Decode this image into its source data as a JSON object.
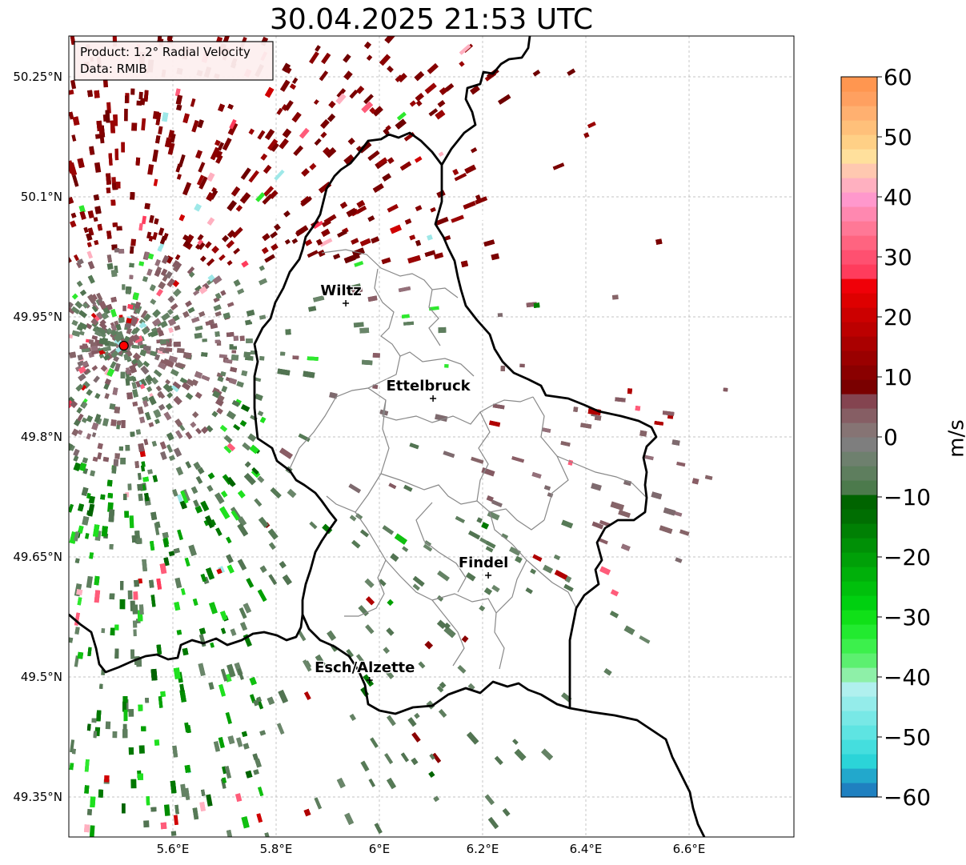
{
  "title": "30.04.2025 21:53 UTC",
  "info_box": {
    "product": "Product: 1.2° Radial Velocity",
    "data": "Data: RMIB"
  },
  "axes": {
    "x_ticks": [
      "5.6°E",
      "5.8°E",
      "6°E",
      "6.2°E",
      "6.4°E",
      "6.6°E"
    ],
    "x_values": [
      5.6,
      5.8,
      6.0,
      6.2,
      6.4,
      6.6
    ],
    "y_ticks": [
      "50.25°N",
      "50.1°N",
      "49.95°N",
      "49.8°N",
      "49.65°N",
      "49.5°N",
      "49.35°N"
    ],
    "y_values": [
      50.25,
      50.1,
      49.95,
      49.8,
      49.65,
      49.5,
      49.35
    ],
    "lon_range": [
      5.4,
      6.8
    ],
    "lat_range": [
      49.3,
      50.3
    ],
    "grid": true
  },
  "cities": [
    {
      "name": "Wiltz",
      "lon": 5.935,
      "lat": 49.967
    },
    {
      "name": "Ettelbruck",
      "lon": 6.104,
      "lat": 49.848
    },
    {
      "name": "Findel",
      "lon": 6.211,
      "lat": 49.627
    },
    {
      "name": "Esch/Alzette",
      "lon": 5.981,
      "lat": 49.496
    }
  ],
  "radar_site": {
    "lon": 5.505,
    "lat": 49.914,
    "color": "#ff0000"
  },
  "colorbar": {
    "label": "m/s",
    "min": -60,
    "max": 60,
    "tick_values": [
      60,
      50,
      40,
      30,
      20,
      10,
      0,
      -10,
      -20,
      -30,
      -40,
      -50,
      -60
    ],
    "tick_labels": [
      "60",
      "50",
      "40",
      "30",
      "20",
      "10",
      "0",
      "−10",
      "−20",
      "−30",
      "−40",
      "−50",
      "−60"
    ],
    "colors_bottom_to_top": [
      "#1f80c0",
      "#22a8cc",
      "#2bd4d8",
      "#44dede",
      "#5ee4e2",
      "#78e8e6",
      "#94ecea",
      "#b0f0ee",
      "#8ef0a8",
      "#5cf070",
      "#3cf04c",
      "#22ea30",
      "#10e018",
      "#00d010",
      "#00c00c",
      "#00b00a",
      "#00a008",
      "#009006",
      "#008004",
      "#006e02",
      "#006400",
      "#4c7a4c",
      "#5e7e5e",
      "#6e806e",
      "#7e7e7e",
      "#867474",
      "#865e64",
      "#844450",
      "#7a0000",
      "#8a0000",
      "#9a0000",
      "#aa0000",
      "#bc0000",
      "#cc0000",
      "#de0000",
      "#f00008",
      "#ff3c5c",
      "#ff5070",
      "#ff6480",
      "#ff7896",
      "#ff88b0",
      "#ff98cc",
      "#ffb0c0",
      "#ffc8b0",
      "#ffe09c",
      "#ffd086",
      "#ffc07a",
      "#ffb070",
      "#ffa060",
      "#ff9650"
    ]
  },
  "colors": {
    "border_national": "#000000",
    "border_cantonal": "#888888",
    "inbound": "#006400",
    "outbound": "#7a0000",
    "near_zero": "#5e7e5e"
  }
}
